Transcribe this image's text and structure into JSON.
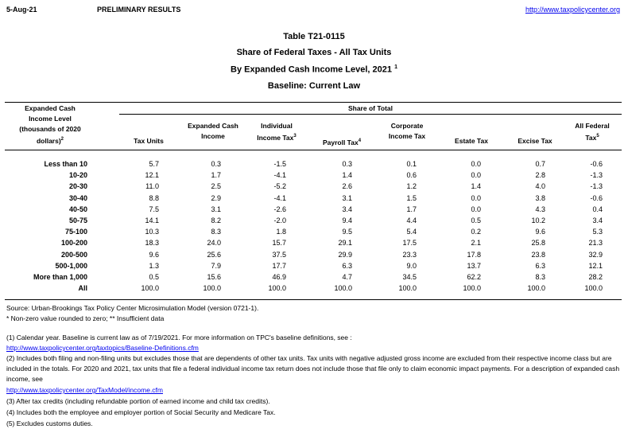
{
  "top": {
    "date": "5-Aug-21",
    "status": "PRELIMINARY RESULTS",
    "url": "http://www.taxpolicycenter.org"
  },
  "titles": [
    "Table T21-0115",
    "Share of Federal Taxes - All Tax Units",
    "By Expanded Cash Income Level, 2021",
    "Baseline: Current Law"
  ],
  "title_sup": "1",
  "header": {
    "row_label": [
      "Expanded Cash",
      "Income Level",
      "(thousands of 2020",
      "dollars)"
    ],
    "row_label_sup": "2",
    "group": "Share of Total",
    "columns": [
      {
        "l1": "",
        "l2": "Tax Units",
        "sup": ""
      },
      {
        "l1": "Expanded Cash",
        "l2": "Income",
        "sup": ""
      },
      {
        "l1": "Individual",
        "l2": "Income Tax",
        "sup": "3"
      },
      {
        "l1": "",
        "l2": "Payroll Tax",
        "sup": "4"
      },
      {
        "l1": "Corporate",
        "l2": "Income Tax",
        "sup": ""
      },
      {
        "l1": "",
        "l2": "Estate Tax",
        "sup": ""
      },
      {
        "l1": "",
        "l2": "Excise Tax",
        "sup": ""
      },
      {
        "l1": "All Federal",
        "l2": "Tax",
        "sup": "5"
      }
    ]
  },
  "rows": [
    {
      "label": "Less than 10",
      "v": [
        "5.7",
        "0.3",
        "-1.5",
        "0.3",
        "0.1",
        "0.0",
        "0.7",
        "-0.6"
      ]
    },
    {
      "label": "10-20",
      "v": [
        "12.1",
        "1.7",
        "-4.1",
        "1.4",
        "0.6",
        "0.0",
        "2.8",
        "-1.3"
      ]
    },
    {
      "label": "20-30",
      "v": [
        "11.0",
        "2.5",
        "-5.2",
        "2.6",
        "1.2",
        "1.4",
        "4.0",
        "-1.3"
      ]
    },
    {
      "label": "30-40",
      "v": [
        "8.8",
        "2.9",
        "-4.1",
        "3.1",
        "1.5",
        "0.0",
        "3.8",
        "-0.6"
      ]
    },
    {
      "label": "40-50",
      "v": [
        "7.5",
        "3.1",
        "-2.6",
        "3.4",
        "1.7",
        "0.0",
        "4.3",
        "0.4"
      ]
    },
    {
      "label": "50-75",
      "v": [
        "14.1",
        "8.2",
        "-2.0",
        "9.4",
        "4.4",
        "0.5",
        "10.2",
        "3.4"
      ]
    },
    {
      "label": "75-100",
      "v": [
        "10.3",
        "8.3",
        "1.8",
        "9.5",
        "5.4",
        "0.2",
        "9.6",
        "5.3"
      ]
    },
    {
      "label": "100-200",
      "v": [
        "18.3",
        "24.0",
        "15.7",
        "29.1",
        "17.5",
        "2.1",
        "25.8",
        "21.3"
      ]
    },
    {
      "label": "200-500",
      "v": [
        "9.6",
        "25.6",
        "37.5",
        "29.9",
        "23.3",
        "17.8",
        "23.8",
        "32.9"
      ]
    },
    {
      "label": "500-1,000",
      "v": [
        "1.3",
        "7.9",
        "17.7",
        "6.3",
        "9.0",
        "13.7",
        "6.3",
        "12.1"
      ]
    },
    {
      "label": "More than 1,000",
      "v": [
        "0.5",
        "15.6",
        "46.9",
        "4.7",
        "34.5",
        "62.2",
        "8.3",
        "28.2"
      ]
    },
    {
      "label": "All",
      "v": [
        "100.0",
        "100.0",
        "100.0",
        "100.0",
        "100.0",
        "100.0",
        "100.0",
        "100.0"
      ]
    }
  ],
  "footnotes": {
    "source": "Source: Urban-Brookings Tax Policy Center Microsimulation Model (version 0721-1).",
    "legend": "* Non-zero value rounded to zero; ** Insufficient data",
    "n1": "(1) Calendar year. Baseline is current law as of 7/19/2021. For more information on TPC's baseline definitions, see :",
    "n1_link": "http://www.taxpolicycenter.org/taxtopics/Baseline-Definitions.cfm",
    "n2": "(2) Includes both filing and non-filing units but excludes those that are dependents of other tax units. Tax units with negative adjusted gross income are excluded from their respective income class but are included in the totals. For 2020 and 2021, tax units that file a federal individual income tax return does not include those that file only to claim economic impact payments. For a description of expanded cash income, see",
    "n2_link": "http://www.taxpolicycenter.org/TaxModel/income.cfm",
    "n3": "(3) After tax credits (including refundable portion of earned income and child tax credits).",
    "n4": "(4) Includes both the employee and employer portion of Social Security and Medicare Tax.",
    "n5": "(5) Excludes customs duties."
  }
}
